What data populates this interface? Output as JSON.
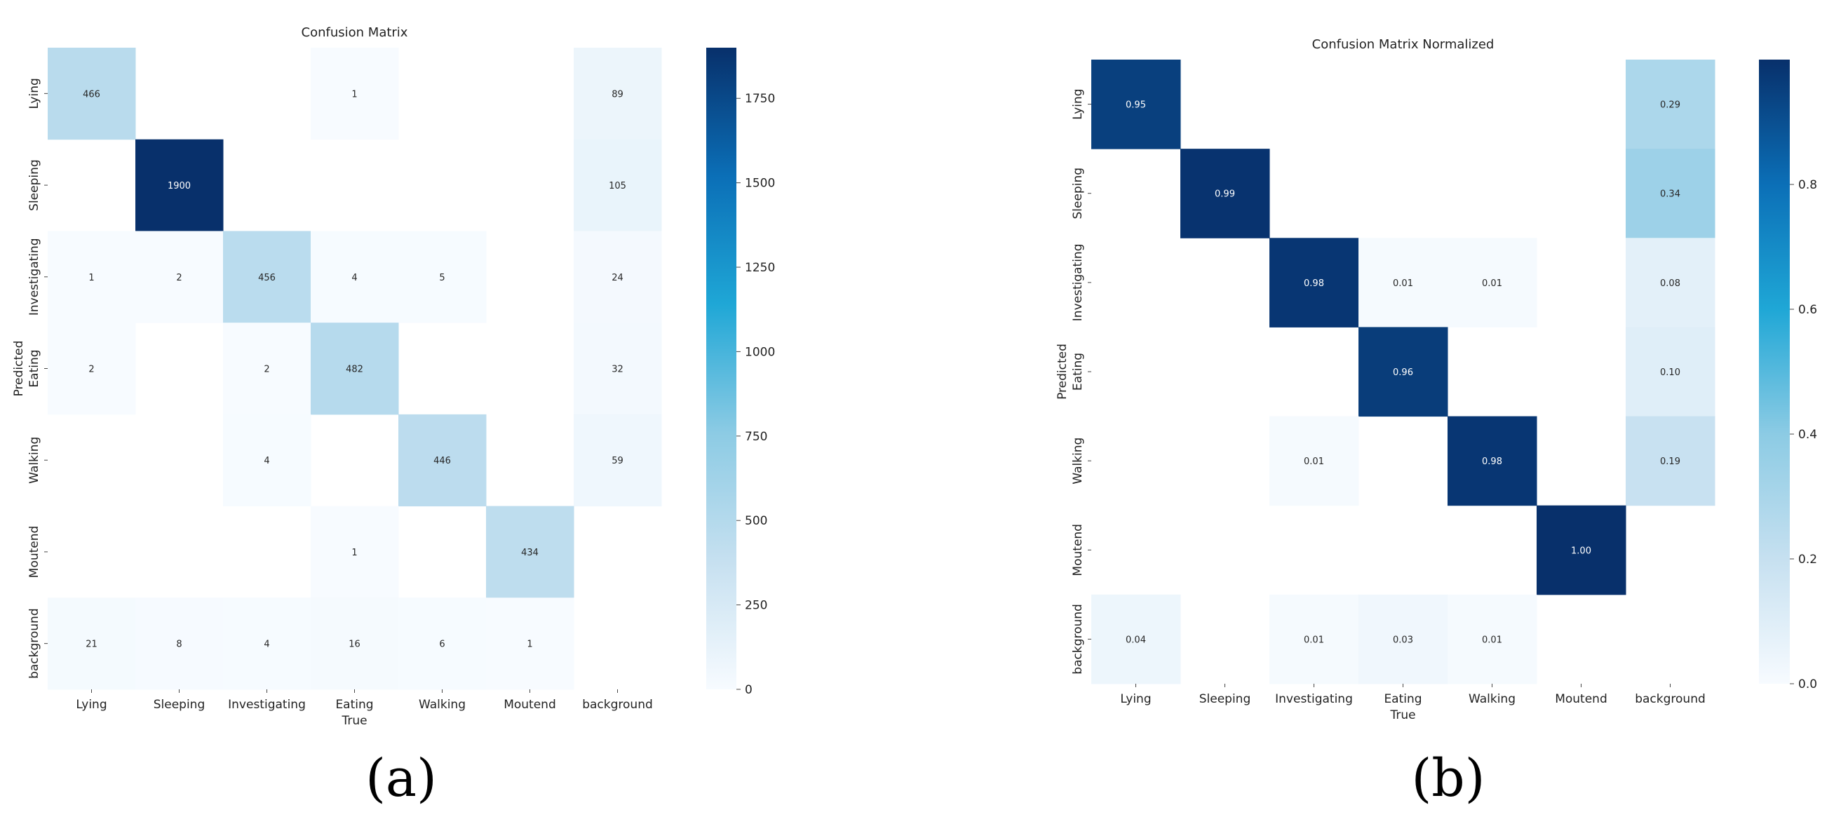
{
  "figure": {
    "label_a": "(a)",
    "label_b": "(b)"
  },
  "chart_data": [
    {
      "type": "heatmap",
      "title": "Confusion Matrix",
      "xlabel": "True",
      "ylabel": "Predicted",
      "x_categories": [
        "Lying",
        "Sleeping",
        "Investigating",
        "Eating",
        "Walking",
        "Moutend",
        "background"
      ],
      "y_categories": [
        "Lying",
        "Sleeping",
        "Investigating",
        "Eating",
        "Walking",
        "Moutend",
        "background"
      ],
      "values": [
        [
          466,
          null,
          null,
          1,
          null,
          null,
          89
        ],
        [
          null,
          1900,
          null,
          null,
          null,
          null,
          105
        ],
        [
          1,
          2,
          456,
          4,
          5,
          null,
          24
        ],
        [
          2,
          null,
          2,
          482,
          null,
          null,
          32
        ],
        [
          null,
          null,
          4,
          null,
          446,
          null,
          59
        ],
        [
          null,
          null,
          null,
          1,
          null,
          434,
          null
        ],
        [
          21,
          8,
          4,
          16,
          6,
          1,
          null
        ]
      ],
      "value_format": "int",
      "colorbar": {
        "min": 0,
        "max": 1900,
        "ticks": [
          0,
          250,
          500,
          750,
          1000,
          1250,
          1500,
          1750
        ]
      },
      "colormap": [
        "#f7fbff",
        "#c6e0f0",
        "#8ccbe4",
        "#1fa7d6",
        "#0b6fb7",
        "#08306b"
      ]
    },
    {
      "type": "heatmap",
      "title": "Confusion Matrix Normalized",
      "xlabel": "True",
      "ylabel": "Predicted",
      "x_categories": [
        "Lying",
        "Sleeping",
        "Investigating",
        "Eating",
        "Walking",
        "Moutend",
        "background"
      ],
      "y_categories": [
        "Lying",
        "Sleeping",
        "Investigating",
        "Eating",
        "Walking",
        "Moutend",
        "background"
      ],
      "values": [
        [
          0.95,
          null,
          null,
          null,
          null,
          null,
          0.29
        ],
        [
          null,
          0.99,
          null,
          null,
          null,
          null,
          0.34
        ],
        [
          null,
          null,
          0.98,
          0.01,
          0.01,
          null,
          0.08
        ],
        [
          null,
          null,
          null,
          0.96,
          null,
          null,
          0.1
        ],
        [
          null,
          null,
          0.01,
          null,
          0.98,
          null,
          0.19
        ],
        [
          null,
          null,
          null,
          null,
          null,
          1.0,
          null
        ],
        [
          0.04,
          null,
          0.01,
          0.03,
          0.01,
          null,
          null
        ]
      ],
      "value_format": "2dp",
      "colorbar": {
        "min": 0,
        "max": 1.0,
        "ticks": [
          "0.0",
          "0.2",
          "0.4",
          "0.6",
          "0.8"
        ]
      },
      "colormap": [
        "#f7fbff",
        "#c6e0f0",
        "#8ccbe4",
        "#1fa7d6",
        "#0b6fb7",
        "#08306b"
      ]
    }
  ]
}
